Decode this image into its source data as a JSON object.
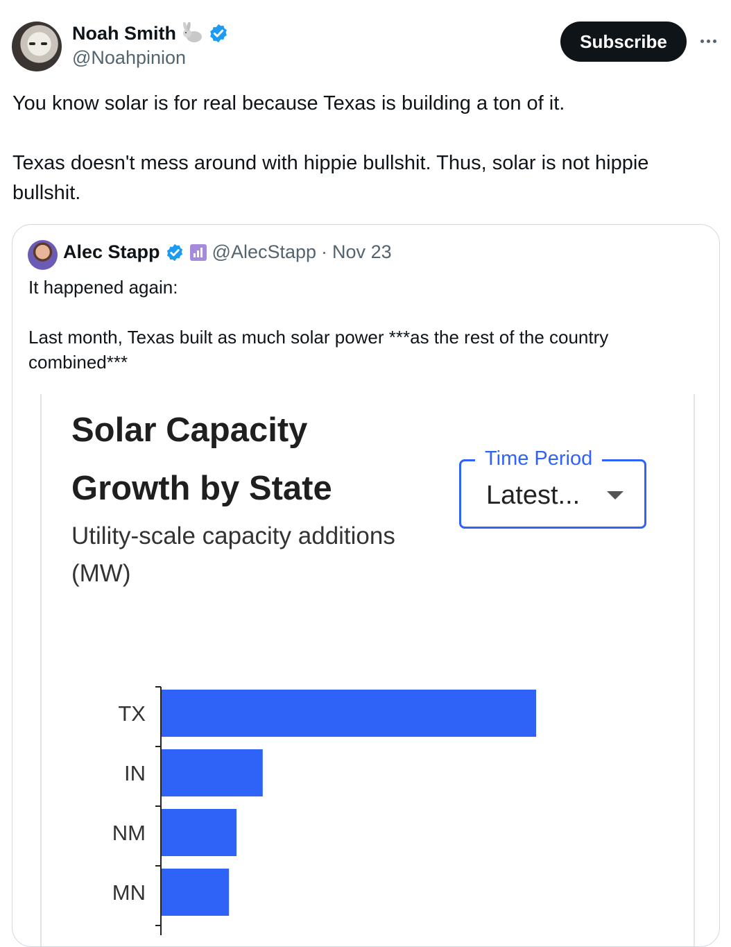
{
  "author": {
    "name": "Noah Smith",
    "handle": "@Noahpinion"
  },
  "subscribe_label": "Subscribe",
  "tweet": {
    "line1": "You know solar is for real because Texas is building a ton of it.",
    "line2": "Texas doesn't mess around with hippie bullshit. Thus, solar is not hippie bullshit."
  },
  "quote": {
    "name": "Alec Stapp",
    "handle": "@AlecStapp",
    "sep": "·",
    "date": "Nov 23",
    "line1": "It happened again:",
    "line2": "Last month, Texas built as much solar power ***as the rest of the country combined***"
  },
  "chart_card": {
    "title_line1": "Solar Capacity",
    "title_line2": "Growth by State",
    "subtitle_line1": "Utility-scale capacity additions",
    "subtitle_line2": "(MW)",
    "time_period_label": "Time Period",
    "time_period_value": "Latest..."
  },
  "colors": {
    "bar": "#2f62f6",
    "accent": "#2f62f6",
    "verified": "#1d9bf0"
  },
  "chart_data": {
    "type": "bar",
    "orientation": "horizontal",
    "categories": [
      "TX",
      "IN",
      "NM",
      "MN"
    ],
    "values": [
      100,
      27,
      20,
      18
    ],
    "title": "Solar Capacity Growth by State",
    "subtitle": "Utility-scale capacity additions (MW)",
    "xlabel": "",
    "ylabel": "",
    "xlim": [
      0,
      100
    ]
  }
}
